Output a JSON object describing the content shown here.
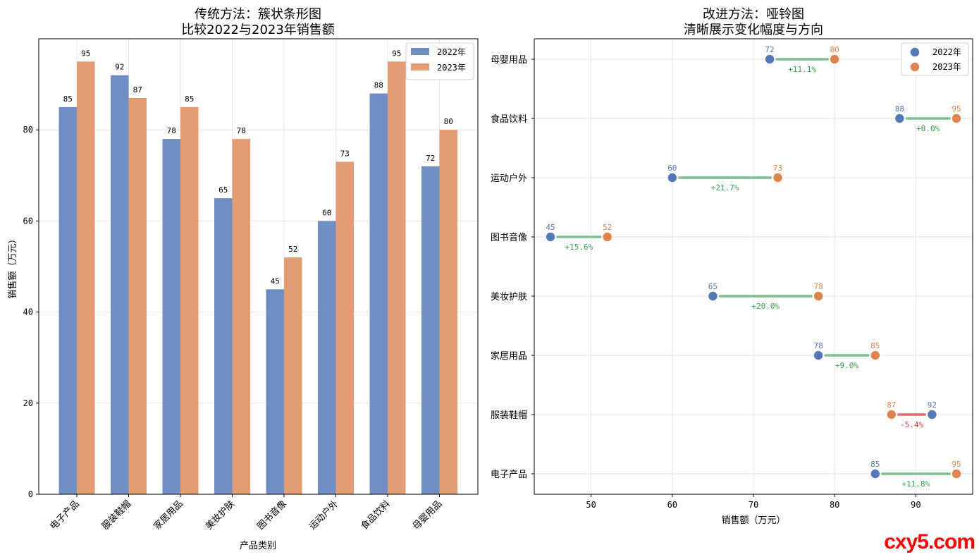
{
  "colors": {
    "y2022": "#6f8fc2",
    "y2023": "#e39c73",
    "dot2022": "#5479b6",
    "dot2023": "#e0844f",
    "up": "#7dbf8e",
    "down": "#e07070",
    "up_text": "#3aa04e",
    "down_text": "#d03a3a"
  },
  "watermark": "cxy5.com",
  "chart_data": [
    {
      "type": "bar",
      "title": "传统方法：簇状条形图",
      "subtitle": "比较2022与2023年销售额",
      "xlabel": "产品类别",
      "ylabel": "销售额（万元）",
      "ylim": [
        0,
        100
      ],
      "yticks": [
        "0",
        "20",
        "40",
        "60",
        "80"
      ],
      "categories": [
        "电子产品",
        "服装鞋帽",
        "家居用品",
        "美妆护肤",
        "图书音像",
        "运动户外",
        "食品饮料",
        "母婴用品"
      ],
      "series": [
        {
          "name": "2022年",
          "values": [
            85,
            92,
            78,
            65,
            45,
            60,
            88,
            72
          ]
        },
        {
          "name": "2023年",
          "values": [
            95,
            87,
            85,
            78,
            52,
            73,
            95,
            80
          ]
        }
      ],
      "legend": "top-right",
      "grid": true
    },
    {
      "type": "dumbbell",
      "title": "改进方法：哑铃图",
      "subtitle": "清晰展示变化幅度与方向",
      "xlabel": "销售额（万元）",
      "xlim": [
        43,
        97
      ],
      "xticks": [
        "50",
        "60",
        "70",
        "80",
        "90"
      ],
      "categories": [
        "电子产品",
        "服装鞋帽",
        "家居用品",
        "美妆护肤",
        "图书音像",
        "运动户外",
        "食品饮料",
        "母婴用品"
      ],
      "series": [
        {
          "name": "2022年",
          "values": [
            85,
            92,
            78,
            65,
            45,
            60,
            88,
            72
          ]
        },
        {
          "name": "2023年",
          "values": [
            95,
            87,
            85,
            78,
            52,
            73,
            95,
            80
          ]
        }
      ],
      "changes": [
        "+11.8%",
        "-5.4%",
        "+9.0%",
        "+20.0%",
        "+15.6%",
        "+21.7%",
        "+8.0%",
        "+11.1%"
      ],
      "legend": "top-right",
      "grid": true
    }
  ]
}
